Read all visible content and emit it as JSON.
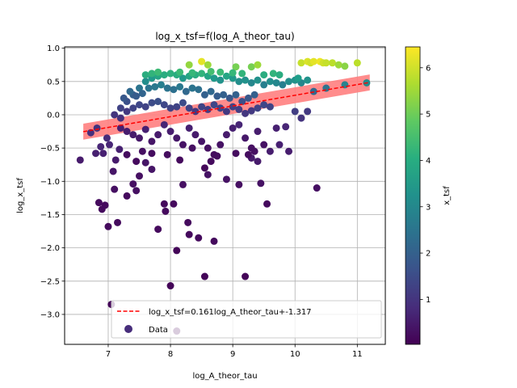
{
  "chart_data": {
    "type": "scatter",
    "title": "log_x_tsf=f(log_A_theor_tau)",
    "xlabel": "log_A_theor_tau",
    "ylabel": "log_x_tsf",
    "xlim": [
      6.3,
      11.45
    ],
    "ylim": [
      -3.45,
      1.02
    ],
    "xticks": [
      7,
      8,
      9,
      10,
      11
    ],
    "xtick_labels": [
      "7",
      "8",
      "9",
      "10",
      "11"
    ],
    "yticks": [
      1.0,
      0.5,
      0.0,
      -0.5,
      -1.0,
      -1.5,
      -2.0,
      -2.5,
      -3.0
    ],
    "ytick_labels": [
      "1.0",
      "0.5",
      "0.0",
      "−0.5",
      "−1.0",
      "−1.5",
      "−2.0",
      "−2.5",
      "−3.0"
    ],
    "grid": true,
    "colormap": "viridis",
    "colorbar": {
      "label": "x_tsf",
      "range": [
        0.03,
        6.45
      ],
      "ticks": [
        1,
        2,
        3,
        4,
        5,
        6
      ],
      "tick_labels": [
        "1",
        "2",
        "3",
        "4",
        "5",
        "6"
      ]
    },
    "fit": {
      "label": "log_x_tsf=0.161log_A_theor_tau+-1.317",
      "slope": 0.161,
      "intercept": -1.317,
      "x_range": [
        6.6,
        11.2
      ],
      "band_halfwidth": 0.12,
      "line_color": "#ff0000",
      "band_color": "#ff7f7f"
    },
    "legend": {
      "placement": "lower center",
      "entries": [
        "log_x_tsf=0.161log_A_theor_tau+-1.317",
        "Data"
      ]
    },
    "series": [
      {
        "name": "Data",
        "points": [
          [
            6.55,
            -0.68
          ],
          [
            6.72,
            -0.27
          ],
          [
            6.82,
            -0.2
          ],
          [
            6.8,
            -0.58
          ],
          [
            6.88,
            -0.48
          ],
          [
            6.92,
            -0.58
          ],
          [
            6.98,
            -0.35
          ],
          [
            7.02,
            -0.45
          ],
          [
            6.85,
            -1.32
          ],
          [
            6.9,
            -1.42
          ],
          [
            6.95,
            -1.36
          ],
          [
            7.0,
            -1.68
          ],
          [
            7.05,
            -2.85
          ],
          [
            7.08,
            -0.85
          ],
          [
            7.1,
            -1.12
          ],
          [
            7.15,
            -1.62
          ],
          [
            7.12,
            -0.68
          ],
          [
            7.18,
            -0.52
          ],
          [
            7.3,
            -1.22
          ],
          [
            7.4,
            -1.04
          ],
          [
            7.45,
            -1.14
          ],
          [
            7.5,
            -0.92
          ],
          [
            7.6,
            -0.72
          ],
          [
            7.7,
            -0.82
          ],
          [
            7.8,
            -1.72
          ],
          [
            7.9,
            -1.34
          ],
          [
            7.92,
            -1.45
          ],
          [
            8.0,
            -2.57
          ],
          [
            8.05,
            -1.34
          ],
          [
            8.1,
            -2.04
          ],
          [
            8.28,
            -1.62
          ],
          [
            8.3,
            -1.8
          ],
          [
            8.45,
            -1.85
          ],
          [
            8.55,
            -2.43
          ],
          [
            8.7,
            -1.9
          ],
          [
            9.2,
            -2.43
          ],
          [
            9.55,
            -1.34
          ],
          [
            10.35,
            -1.1
          ],
          [
            8.1,
            -3.25
          ],
          [
            8.2,
            -1.05
          ],
          [
            8.6,
            -0.9
          ],
          [
            8.9,
            -0.97
          ],
          [
            9.1,
            -1.05
          ],
          [
            9.45,
            -1.03
          ],
          [
            9.3,
            -0.65
          ],
          [
            9.4,
            -0.7
          ],
          [
            9.6,
            -0.55
          ],
          [
            9.75,
            -0.45
          ],
          [
            9.85,
            -0.18
          ],
          [
            9.9,
            -0.55
          ],
          [
            10.0,
            0.05
          ],
          [
            10.1,
            -0.05
          ],
          [
            10.2,
            0.05
          ],
          [
            10.3,
            0.35
          ],
          [
            10.5,
            0.4
          ],
          [
            10.8,
            0.45
          ],
          [
            11.15,
            0.48
          ],
          [
            10.1,
            0.78
          ],
          [
            10.2,
            0.8
          ],
          [
            10.25,
            0.78
          ],
          [
            10.3,
            0.8
          ],
          [
            10.4,
            0.8
          ],
          [
            10.45,
            0.78
          ],
          [
            10.5,
            0.78
          ],
          [
            10.6,
            0.78
          ],
          [
            10.7,
            0.75
          ],
          [
            10.8,
            0.73
          ],
          [
            11.0,
            0.78
          ],
          [
            8.5,
            0.8
          ],
          [
            8.6,
            0.75
          ],
          [
            8.3,
            0.75
          ],
          [
            9.05,
            0.72
          ],
          [
            9.3,
            0.72
          ],
          [
            9.4,
            0.75
          ],
          [
            7.2,
            0.1
          ],
          [
            7.3,
            0.2
          ],
          [
            7.4,
            0.3
          ],
          [
            7.5,
            0.4
          ],
          [
            7.6,
            0.5
          ],
          [
            7.7,
            0.55
          ],
          [
            7.8,
            0.58
          ],
          [
            7.9,
            0.6
          ],
          [
            8.0,
            0.62
          ],
          [
            8.1,
            0.6
          ],
          [
            8.2,
            0.55
          ],
          [
            8.3,
            0.58
          ],
          [
            8.4,
            0.6
          ],
          [
            8.5,
            0.62
          ],
          [
            8.6,
            0.58
          ],
          [
            8.7,
            0.55
          ],
          [
            8.8,
            0.52
          ],
          [
            8.9,
            0.58
          ],
          [
            9.0,
            0.55
          ],
          [
            9.1,
            0.5
          ],
          [
            9.2,
            0.52
          ],
          [
            9.3,
            0.48
          ],
          [
            9.4,
            0.52
          ],
          [
            9.5,
            0.45
          ],
          [
            9.6,
            0.5
          ],
          [
            9.7,
            0.48
          ],
          [
            9.8,
            0.45
          ],
          [
            9.9,
            0.5
          ],
          [
            10.0,
            0.52
          ],
          [
            10.1,
            0.48
          ],
          [
            7.25,
            0.25
          ],
          [
            7.35,
            0.35
          ],
          [
            7.45,
            0.28
          ],
          [
            7.55,
            0.32
          ],
          [
            7.65,
            0.4
          ],
          [
            7.75,
            0.42
          ],
          [
            7.85,
            0.45
          ],
          [
            7.95,
            0.4
          ],
          [
            8.05,
            0.38
          ],
          [
            8.15,
            0.42
          ],
          [
            8.25,
            0.35
          ],
          [
            8.35,
            0.4
          ],
          [
            8.45,
            0.38
          ],
          [
            8.55,
            0.3
          ],
          [
            8.65,
            0.35
          ],
          [
            8.75,
            0.28
          ],
          [
            8.85,
            0.3
          ],
          [
            8.95,
            0.25
          ],
          [
            9.05,
            0.3
          ],
          [
            9.15,
            0.2
          ],
          [
            9.25,
            0.25
          ],
          [
            9.35,
            0.3
          ],
          [
            7.1,
            0.0
          ],
          [
            7.2,
            -0.05
          ],
          [
            7.3,
            0.05
          ],
          [
            7.4,
            0.1
          ],
          [
            7.5,
            0.15
          ],
          [
            7.6,
            0.12
          ],
          [
            7.7,
            0.18
          ],
          [
            7.8,
            0.2
          ],
          [
            7.9,
            0.15
          ],
          [
            8.0,
            0.1
          ],
          [
            8.1,
            0.12
          ],
          [
            8.2,
            0.18
          ],
          [
            8.3,
            0.1
          ],
          [
            8.4,
            0.05
          ],
          [
            8.5,
            0.12
          ],
          [
            8.6,
            0.08
          ],
          [
            8.7,
            0.15
          ],
          [
            8.8,
            0.1
          ],
          [
            8.9,
            0.05
          ],
          [
            9.0,
            0.12
          ],
          [
            9.1,
            0.08
          ],
          [
            9.2,
            0.02
          ],
          [
            9.3,
            0.06
          ],
          [
            9.4,
            0.1
          ],
          [
            9.5,
            0.15
          ],
          [
            9.6,
            0.12
          ],
          [
            7.2,
            -0.2
          ],
          [
            7.3,
            -0.25
          ],
          [
            7.4,
            -0.3
          ],
          [
            7.5,
            -0.35
          ],
          [
            7.6,
            -0.22
          ],
          [
            7.7,
            -0.4
          ],
          [
            7.8,
            -0.3
          ],
          [
            7.9,
            -0.15
          ],
          [
            8.0,
            -0.25
          ],
          [
            8.1,
            -0.35
          ],
          [
            8.2,
            -0.45
          ],
          [
            8.3,
            -0.2
          ],
          [
            8.4,
            -0.3
          ],
          [
            8.5,
            -0.4
          ],
          [
            8.6,
            -0.5
          ],
          [
            8.7,
            -0.6
          ],
          [
            8.8,
            -0.45
          ],
          [
            8.9,
            -0.3
          ],
          [
            9.0,
            -0.2
          ],
          [
            9.1,
            -0.15
          ],
          [
            9.2,
            -0.35
          ],
          [
            9.3,
            -0.5
          ],
          [
            9.4,
            -0.25
          ],
          [
            9.5,
            -0.45
          ],
          [
            9.7,
            -0.2
          ],
          [
            7.3,
            -0.6
          ],
          [
            7.45,
            -0.7
          ],
          [
            7.55,
            -0.55
          ],
          [
            7.7,
            -0.58
          ],
          [
            7.95,
            -0.6
          ],
          [
            8.15,
            -0.68
          ],
          [
            8.35,
            -0.5
          ],
          [
            8.55,
            -0.8
          ],
          [
            8.65,
            -0.7
          ],
          [
            8.75,
            -0.62
          ],
          [
            9.05,
            -0.58
          ],
          [
            9.25,
            -0.6
          ],
          [
            9.35,
            -0.55
          ],
          [
            7.6,
            0.6
          ],
          [
            7.7,
            0.62
          ],
          [
            7.8,
            0.64
          ],
          [
            8.15,
            0.64
          ],
          [
            8.35,
            0.63
          ],
          [
            8.65,
            0.65
          ],
          [
            8.8,
            0.64
          ],
          [
            9.0,
            0.63
          ],
          [
            9.15,
            0.62
          ],
          [
            9.5,
            0.6
          ],
          [
            9.65,
            0.62
          ],
          [
            9.75,
            0.6
          ],
          [
            10.05,
            0.55
          ],
          [
            10.2,
            0.52
          ]
        ],
        "colors": [
          0.5,
          0.9,
          1.0,
          0.6,
          0.7,
          0.6,
          0.8,
          0.7,
          0.2,
          0.2,
          0.2,
          0.2,
          0.1,
          0.4,
          0.3,
          0.2,
          0.5,
          0.6,
          0.2,
          0.3,
          0.3,
          0.3,
          0.4,
          0.4,
          0.2,
          0.2,
          0.2,
          0.1,
          0.2,
          0.1,
          0.2,
          0.2,
          0.2,
          0.1,
          0.2,
          0.1,
          0.2,
          0.3,
          0.05,
          0.3,
          0.35,
          0.35,
          0.3,
          0.35,
          0.5,
          0.5,
          0.55,
          0.6,
          0.7,
          0.55,
          1.2,
          1.0,
          1.1,
          2.2,
          2.5,
          2.9,
          3.1,
          5.9,
          6.1,
          6.0,
          6.2,
          6.3,
          6.0,
          5.9,
          5.8,
          5.5,
          5.3,
          5.8,
          6.2,
          5.5,
          5.4,
          5.1,
          5.1,
          5.5,
          1.3,
          1.6,
          2.0,
          2.5,
          3.2,
          3.5,
          3.8,
          4.0,
          4.1,
          4.0,
          3.5,
          3.8,
          4.0,
          4.2,
          3.8,
          3.5,
          3.3,
          3.8,
          3.5,
          3.2,
          3.3,
          3.0,
          3.3,
          2.8,
          3.2,
          3.0,
          2.8,
          3.2,
          3.3,
          3.0,
          1.8,
          2.2,
          1.9,
          2.1,
          2.5,
          2.6,
          2.8,
          2.5,
          2.4,
          2.6,
          2.2,
          2.5,
          2.4,
          2.0,
          2.2,
          1.9,
          2.0,
          1.8,
          2.0,
          1.6,
          1.8,
          2.0,
          1.0,
          0.9,
          1.1,
          1.3,
          1.4,
          1.3,
          1.5,
          1.6,
          1.4,
          1.3,
          1.3,
          1.5,
          1.3,
          1.1,
          1.3,
          1.2,
          1.4,
          1.3,
          1.1,
          1.3,
          1.2,
          1.05,
          1.1,
          1.3,
          1.4,
          1.3,
          0.6,
          0.55,
          0.5,
          0.45,
          0.6,
          0.4,
          0.5,
          0.7,
          0.55,
          0.45,
          0.35,
          0.6,
          0.5,
          0.4,
          0.3,
          0.25,
          0.35,
          0.5,
          0.6,
          0.7,
          0.45,
          0.3,
          0.55,
          0.35,
          0.6,
          0.25,
          0.2,
          0.3,
          0.25,
          0.25,
          0.2,
          0.3,
          0.15,
          0.2,
          0.25,
          0.25,
          0.25,
          0.3,
          4.0,
          4.2,
          4.4,
          4.4,
          4.3,
          4.5,
          4.4,
          4.3,
          4.2,
          4.0,
          4.2,
          4.0,
          3.6,
          3.3
        ]
      }
    ]
  }
}
